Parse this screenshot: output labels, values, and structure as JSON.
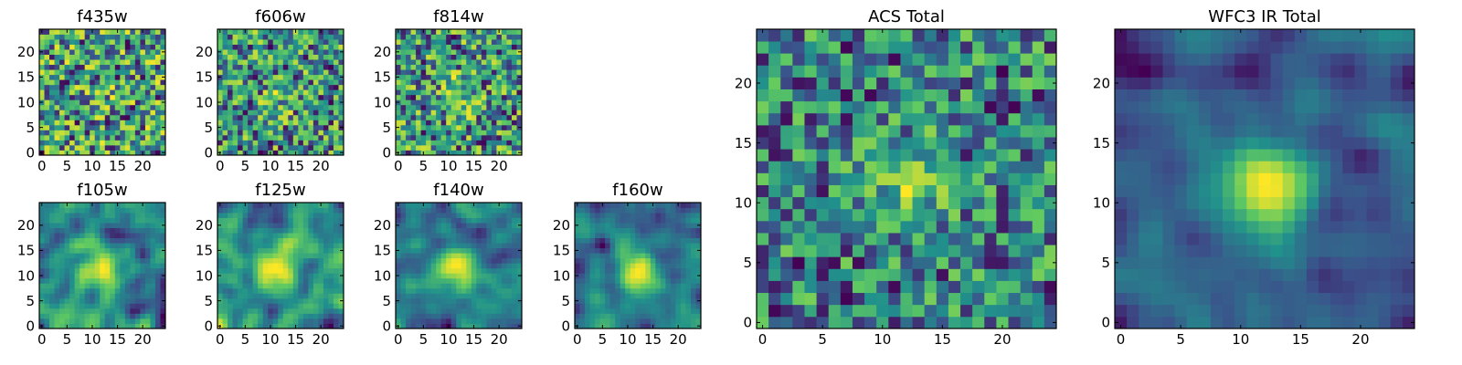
{
  "chart_data": {
    "type": "heatmap",
    "colormap": "viridis",
    "colormap_stops": [
      "#440154",
      "#3b528b",
      "#21918c",
      "#5ec962",
      "#fde725"
    ],
    "frame_color": "#000000",
    "grid_size": [
      25,
      25
    ],
    "panels": [
      {
        "id": "f435w",
        "title": "f435w",
        "xticks": [
          "0",
          "5",
          "10",
          "15",
          "20"
        ],
        "yticks": [
          "0",
          "5",
          "10",
          "15",
          "20"
        ],
        "xlim": [
          -0.5,
          24.5
        ],
        "ylim": [
          -0.5,
          24.5
        ],
        "texture": "noise",
        "seed": 11,
        "blob_strength": 0.05
      },
      {
        "id": "f606w",
        "title": "f606w",
        "xticks": [
          "0",
          "5",
          "10",
          "15",
          "20"
        ],
        "yticks": [
          "0",
          "5",
          "10",
          "15",
          "20"
        ],
        "xlim": [
          -0.5,
          24.5
        ],
        "ylim": [
          -0.5,
          24.5
        ],
        "texture": "noise",
        "seed": 23,
        "blob_strength": 0.18
      },
      {
        "id": "f814w",
        "title": "f814w",
        "xticks": [
          "0",
          "5",
          "10",
          "15",
          "20"
        ],
        "yticks": [
          "0",
          "5",
          "10",
          "15",
          "20"
        ],
        "xlim": [
          -0.5,
          24.5
        ],
        "ylim": [
          -0.5,
          24.5
        ],
        "texture": "noise",
        "seed": 37,
        "blob_strength": 0.35
      },
      {
        "id": "f105w",
        "title": "f105w",
        "xticks": [
          "0",
          "5",
          "10",
          "15",
          "20"
        ],
        "yticks": [
          "0",
          "5",
          "10",
          "15",
          "20"
        ],
        "xlim": [
          -0.5,
          24.5
        ],
        "ylim": [
          -0.5,
          24.5
        ],
        "texture": "smooth",
        "seed": 41,
        "blob_strength": 0.35
      },
      {
        "id": "f125w",
        "title": "f125w",
        "xticks": [
          "0",
          "5",
          "10",
          "15",
          "20"
        ],
        "yticks": [
          "0",
          "5",
          "10",
          "15",
          "20"
        ],
        "xlim": [
          -0.5,
          24.5
        ],
        "ylim": [
          -0.5,
          24.5
        ],
        "texture": "smooth",
        "seed": 53,
        "blob_strength": 0.3
      },
      {
        "id": "f140w",
        "title": "f140w",
        "xticks": [
          "0",
          "5",
          "10",
          "15",
          "20"
        ],
        "yticks": [
          "0",
          "5",
          "10",
          "15",
          "20"
        ],
        "xlim": [
          -0.5,
          24.5
        ],
        "ylim": [
          -0.5,
          24.5
        ],
        "texture": "smooth",
        "seed": 67,
        "blob_strength": 0.45
      },
      {
        "id": "f160w",
        "title": "f160w",
        "xticks": [
          "0",
          "5",
          "10",
          "15",
          "20"
        ],
        "yticks": [
          "0",
          "5",
          "10",
          "15",
          "20"
        ],
        "xlim": [
          -0.5,
          24.5
        ],
        "ylim": [
          -0.5,
          24.5
        ],
        "texture": "smooth",
        "seed": 79,
        "blob_strength": 0.6
      },
      {
        "id": "acs_total",
        "title": "ACS Total",
        "xticks": [
          "0",
          "5",
          "10",
          "15",
          "20"
        ],
        "yticks": [
          "0",
          "5",
          "10",
          "15",
          "20"
        ],
        "xlim": [
          -0.5,
          24.5
        ],
        "ylim": [
          -0.5,
          24.5
        ],
        "texture": "noise",
        "seed": 97,
        "blob_strength": 0.4
      },
      {
        "id": "wfc3_ir_total",
        "title": "WFC3 IR Total",
        "xticks": [
          "0",
          "5",
          "10",
          "15",
          "20"
        ],
        "yticks": [
          "0",
          "5",
          "10",
          "15",
          "20"
        ],
        "xlim": [
          -0.5,
          24.5
        ],
        "ylim": [
          -0.5,
          24.5
        ],
        "texture": "smooth",
        "seed": 113,
        "blob_strength": 0.65
      }
    ]
  }
}
